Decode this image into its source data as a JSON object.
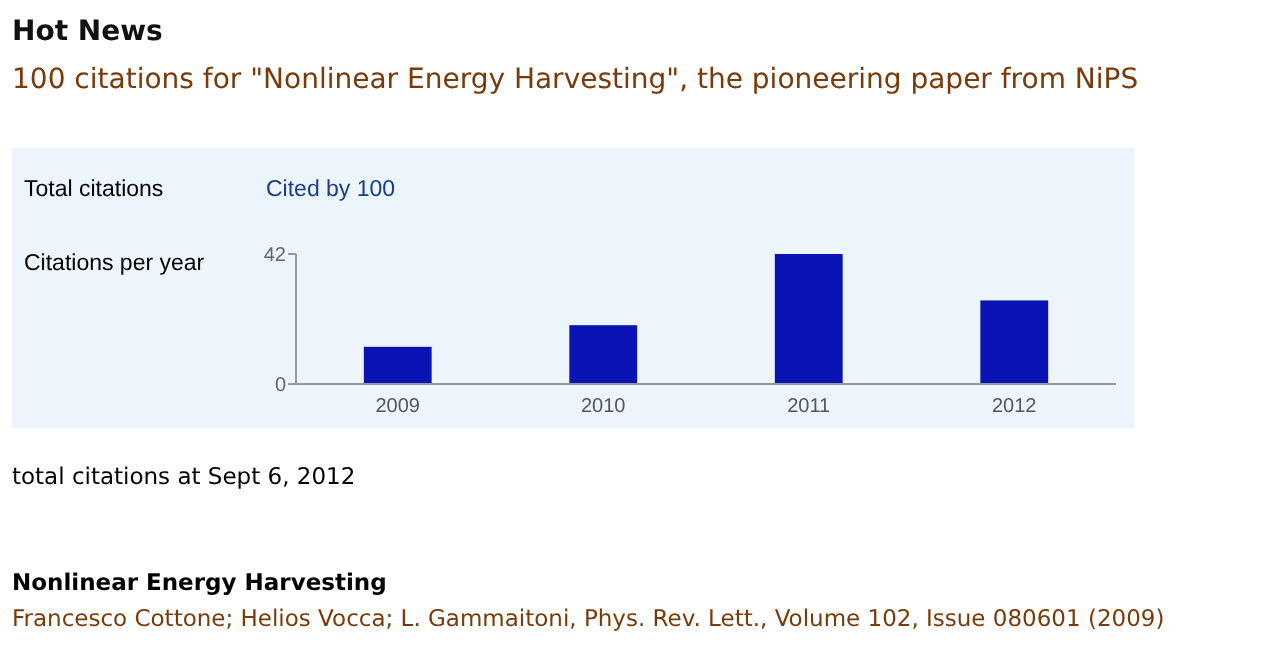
{
  "chart_data": {
    "type": "bar",
    "title": "Hot News",
    "subtitle": "100 citations for \"Nonlinear Energy Harvesting\", the pioneering paper from NiPS",
    "ylabel": "Citations per year",
    "categories": [
      "2009",
      "2010",
      "2011",
      "2012"
    ],
    "values": [
      12,
      19,
      42,
      27
    ],
    "color": "#0a14b4",
    "ylim": [
      0,
      42
    ],
    "yticks": [
      0,
      42
    ],
    "grid": false,
    "annotations": [
      "Total citations",
      "Cited by 100",
      "total citations at Sept 6, 2012",
      "Nonlinear Energy Harvesting",
      "Francesco Cottone; Helios Vocca; L. Gammaitoni, Phys. Rev. Lett., Volume 102, Issue 080601 (2009)"
    ]
  }
}
